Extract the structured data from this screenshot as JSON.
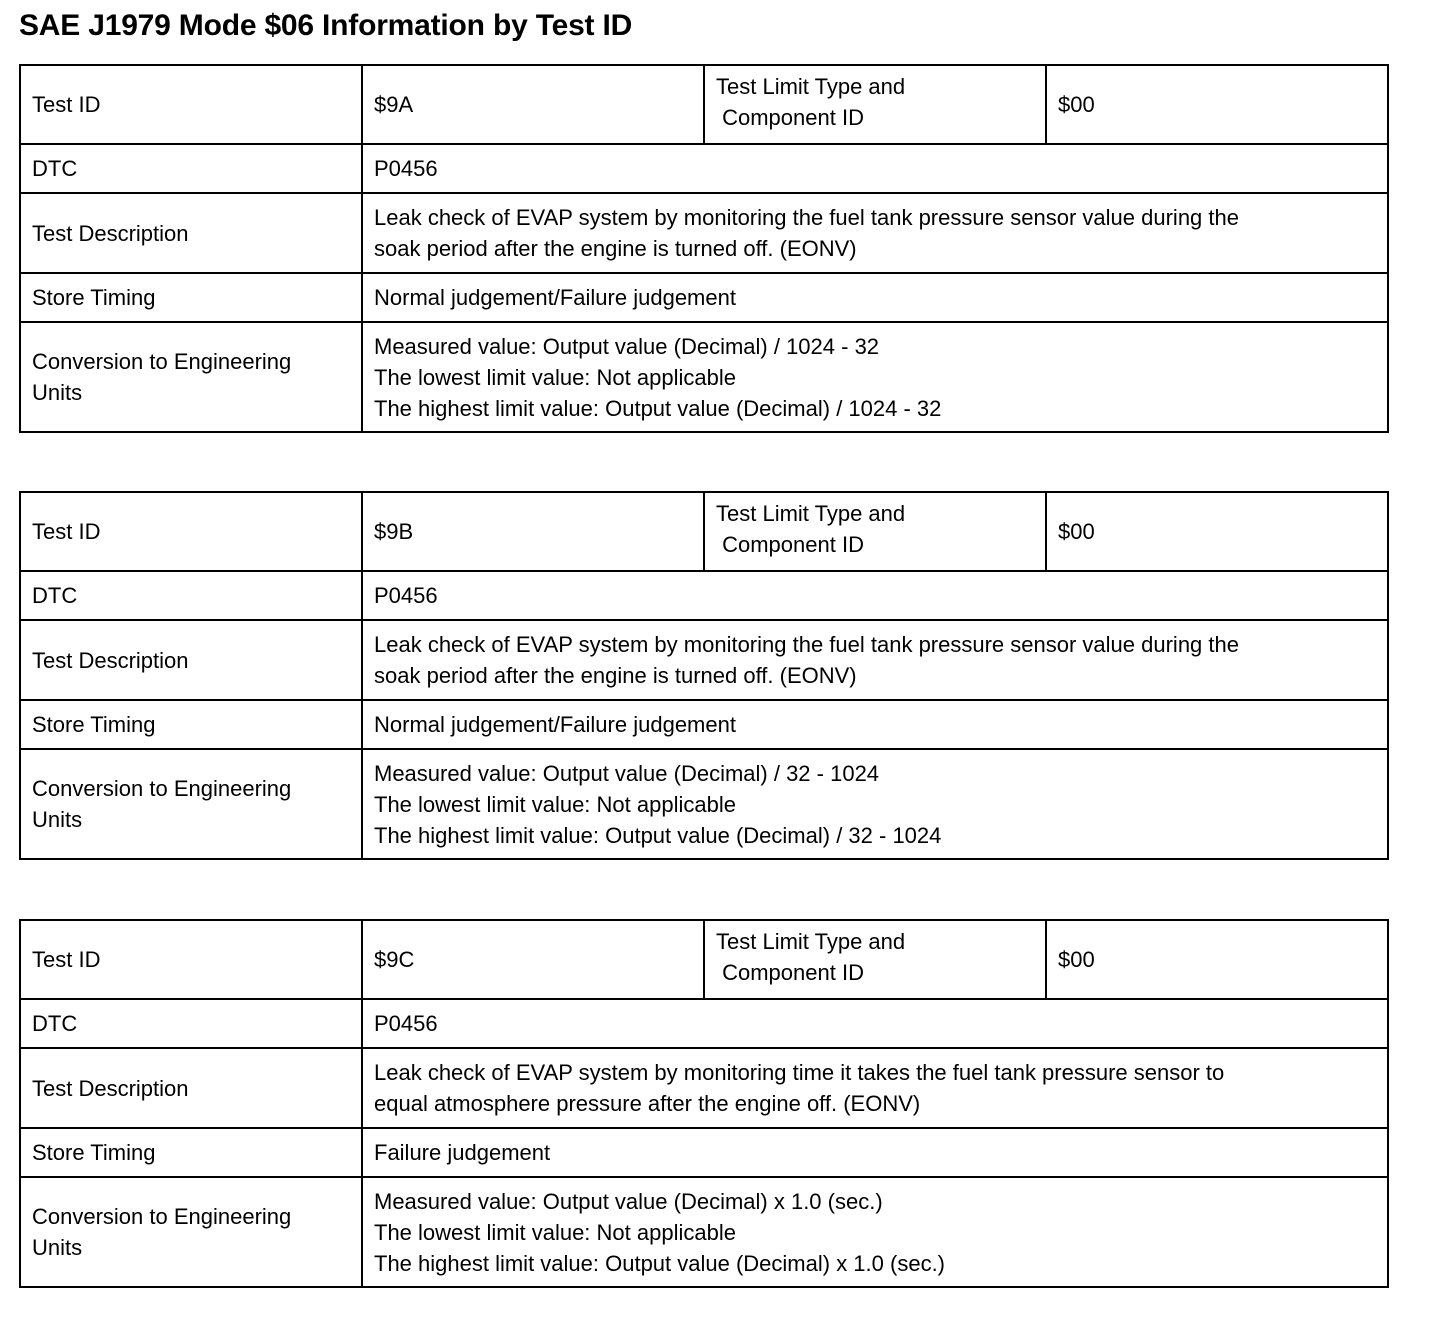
{
  "title": "SAE J1979 Mode $06 Information by Test ID",
  "labels": {
    "test_id": "Test ID",
    "limit_type_line1": "Test Limit Type and",
    "limit_type_line2": " Component ID",
    "dtc": "DTC",
    "test_description": "Test Description",
    "store_timing": "Store Timing",
    "conversion_line1": "Conversion to Engineering",
    "conversion_line2": "Units"
  },
  "tests": [
    {
      "test_id": "$9A",
      "limit_type": "$00",
      "dtc": "P0456",
      "description": [
        "Leak check of EVAP system by monitoring the fuel tank pressure sensor value during the",
        "soak period after the engine is turned off. (EONV)"
      ],
      "store_timing": "Normal judgement/Failure judgement",
      "conversion": [
        "Measured value: Output value (Decimal) / 1024 - 32",
        "The lowest limit value: Not applicable",
        "The highest limit value: Output value (Decimal) / 1024 - 32"
      ]
    },
    {
      "test_id": "$9B",
      "limit_type": "$00",
      "dtc": "P0456",
      "description": [
        "Leak check of EVAP system by monitoring the fuel tank pressure sensor value during the",
        "soak period after the engine is turned off. (EONV)"
      ],
      "store_timing": "Normal judgement/Failure judgement",
      "conversion": [
        "Measured value: Output value (Decimal) / 32 - 1024",
        "The lowest limit value: Not applicable",
        "The highest limit value: Output value (Decimal) / 32 - 1024"
      ]
    },
    {
      "test_id": "$9C",
      "limit_type": "$00",
      "dtc": "P0456",
      "description": [
        "Leak check of EVAP system by monitoring time it takes the fuel tank pressure sensor to",
        "equal atmosphere pressure after the engine off. (EONV)"
      ],
      "store_timing": "Failure judgement",
      "conversion": [
        "Measured value: Output value (Decimal) x 1.0 (sec.)",
        "The lowest limit value: Not applicable",
        "The highest limit value: Output value (Decimal) x 1.0 (sec.)"
      ]
    }
  ]
}
